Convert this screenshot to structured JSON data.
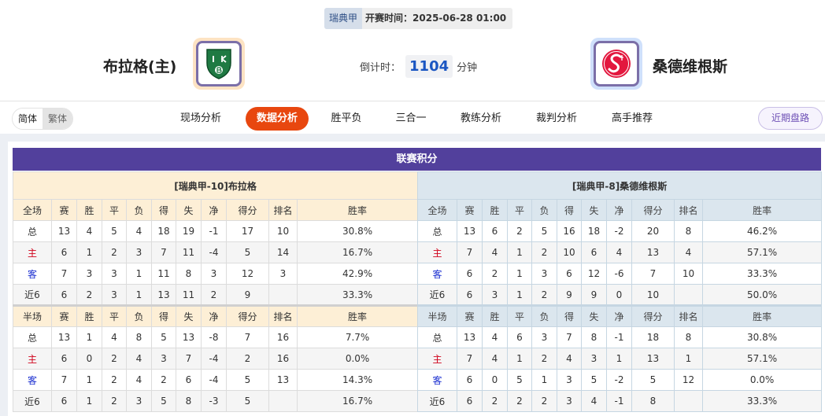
{
  "match": {
    "league": "瑞典甲",
    "kickoff": "开赛时间：2025-06-28 01:00",
    "home": {
      "name": "布拉格(主)",
      "logo": "IKB"
    },
    "away": {
      "name": "桑德维根斯",
      "logo": "SF"
    },
    "countdown_label": "倒计时：",
    "countdown_value": "1104",
    "countdown_unit": "分钟"
  },
  "nav": {
    "lang": [
      "简体",
      "繁体"
    ],
    "tabs": [
      "现场分析",
      "数据分析",
      "胜平负",
      "三合一",
      "教练分析",
      "裁判分析",
      "高手推荐"
    ],
    "active_tab": "数据分析",
    "recent_button": "近期盘路"
  },
  "colors": {
    "accent": "#e8470f",
    "header": "#52409c",
    "home_label": "#d0021b",
    "away_label": "#1a2ed0"
  },
  "standings": {
    "title": "联赛积分",
    "columns": [
      "赛",
      "胜",
      "平",
      "负",
      "得",
      "失",
      "净",
      "得分",
      "排名",
      "胜率"
    ],
    "teams": [
      {
        "title": "[瑞典甲-10]布拉格",
        "full": {
          "label": "全场",
          "rows": [
            [
              "总",
              "13",
              "4",
              "5",
              "4",
              "18",
              "19",
              "-1",
              "17",
              "10",
              "30.8%"
            ],
            [
              "主",
              "6",
              "1",
              "2",
              "3",
              "7",
              "11",
              "-4",
              "5",
              "14",
              "16.7%"
            ],
            [
              "客",
              "7",
              "3",
              "3",
              "1",
              "11",
              "8",
              "3",
              "12",
              "3",
              "42.9%"
            ],
            [
              "近6",
              "6",
              "2",
              "3",
              "1",
              "13",
              "11",
              "2",
              "9",
              "",
              "33.3%"
            ]
          ]
        },
        "half": {
          "label": "半场",
          "rows": [
            [
              "总",
              "13",
              "1",
              "4",
              "8",
              "5",
              "13",
              "-8",
              "7",
              "16",
              "7.7%"
            ],
            [
              "主",
              "6",
              "0",
              "2",
              "4",
              "3",
              "7",
              "-4",
              "2",
              "16",
              "0.0%"
            ],
            [
              "客",
              "7",
              "1",
              "2",
              "4",
              "2",
              "6",
              "-4",
              "5",
              "13",
              "14.3%"
            ],
            [
              "近6",
              "6",
              "1",
              "2",
              "3",
              "5",
              "8",
              "-3",
              "5",
              "",
              "16.7%"
            ]
          ]
        }
      },
      {
        "title": "[瑞典甲-8]桑德维根斯",
        "full": {
          "label": "全场",
          "rows": [
            [
              "总",
              "13",
              "6",
              "2",
              "5",
              "16",
              "18",
              "-2",
              "20",
              "8",
              "46.2%"
            ],
            [
              "主",
              "7",
              "4",
              "1",
              "2",
              "10",
              "6",
              "4",
              "13",
              "4",
              "57.1%"
            ],
            [
              "客",
              "6",
              "2",
              "1",
              "3",
              "6",
              "12",
              "-6",
              "7",
              "10",
              "33.3%"
            ],
            [
              "近6",
              "6",
              "3",
              "1",
              "2",
              "9",
              "9",
              "0",
              "10",
              "",
              "50.0%"
            ]
          ]
        },
        "half": {
          "label": "半场",
          "rows": [
            [
              "总",
              "13",
              "4",
              "6",
              "3",
              "7",
              "8",
              "-1",
              "18",
              "8",
              "30.8%"
            ],
            [
              "主",
              "7",
              "4",
              "1",
              "2",
              "4",
              "3",
              "1",
              "13",
              "1",
              "57.1%"
            ],
            [
              "客",
              "6",
              "0",
              "5",
              "1",
              "3",
              "5",
              "-2",
              "5",
              "12",
              "0.0%"
            ],
            [
              "近6",
              "6",
              "2",
              "2",
              "2",
              "3",
              "4",
              "-1",
              "8",
              "",
              "33.3%"
            ]
          ]
        }
      }
    ]
  }
}
